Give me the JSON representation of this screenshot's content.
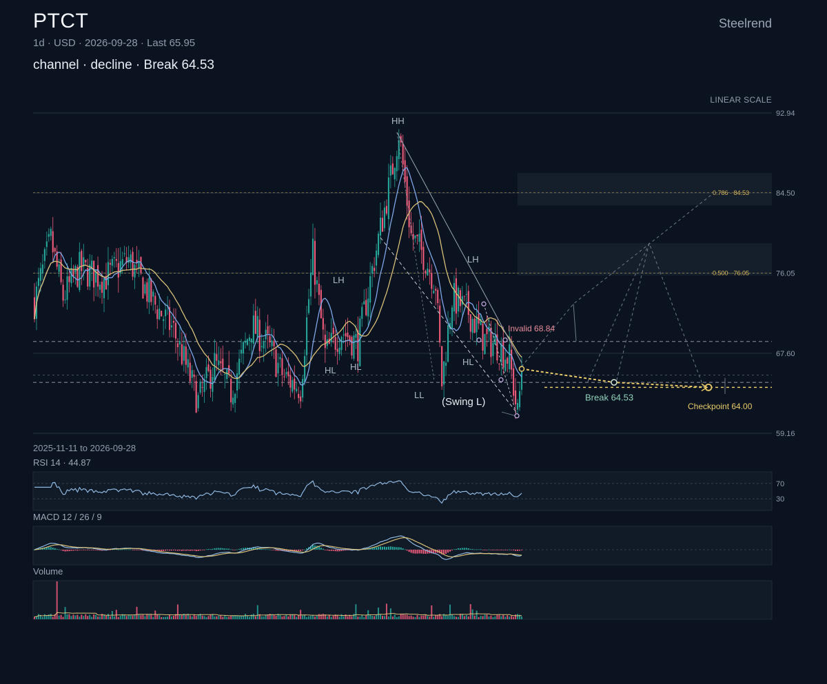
{
  "header": {
    "symbol": "PTCT",
    "subtitle": "1d · USD · 2026-09-28 · Last 65.95",
    "pattern": "channel · decline · Break 64.53",
    "brand": "Steelrend",
    "scale_label": "LINEAR SCALE",
    "date_range": "2025-11-11 to 2026-09-28"
  },
  "colors": {
    "background": "#0c1320",
    "up": "#26a69a",
    "down": "#ef5b7a",
    "ma_fast": "#7fa7e8",
    "ma_slow": "#d9c079",
    "fib": "#d9b85c",
    "projection": "#e8c96a",
    "invalid": "#e88c9a",
    "break": "#8fd0b8"
  },
  "chart_data": [
    {
      "type": "candlestick",
      "title": "PTCT",
      "y_ticks": [
        92.94,
        84.5,
        76.05,
        67.6,
        59.16
      ],
      "ylim": [
        59.16,
        92.94
      ],
      "x_start": "2025-11-11",
      "x_end": "2026-09-28",
      "last": 65.95,
      "anchor_path": [
        [
          0,
          73.0
        ],
        [
          8,
          79.5
        ],
        [
          14,
          73.5
        ],
        [
          22,
          76.5
        ],
        [
          34,
          75.5
        ],
        [
          46,
          77.5
        ],
        [
          58,
          73.0
        ],
        [
          68,
          70.0
        ],
        [
          80,
          62.5
        ],
        [
          88,
          66.5
        ],
        [
          96,
          63.5
        ],
        [
          106,
          70.5
        ],
        [
          114,
          68.5
        ],
        [
          122,
          65.0
        ],
        [
          130,
          64.0
        ],
        [
          136,
          78.0
        ],
        [
          142,
          67.5
        ],
        [
          150,
          70.0
        ],
        [
          158,
          68.5
        ],
        [
          166,
          77.5
        ],
        [
          174,
          86.0
        ],
        [
          178,
          91.0
        ],
        [
          184,
          80.0
        ],
        [
          190,
          78.0
        ],
        [
          196,
          75.0
        ],
        [
          199,
          64.5
        ],
        [
          204,
          73.5
        ],
        [
          212,
          72.0
        ],
        [
          220,
          69.0
        ],
        [
          226,
          68.5
        ],
        [
          232,
          67.0
        ],
        [
          236,
          61.0
        ],
        [
          238,
          65.95
        ]
      ],
      "levels": [
        {
          "label": "0.786 · 84.53",
          "value": 84.53,
          "kind": "fib"
        },
        {
          "label": "0.500 · 76.05",
          "value": 76.05,
          "kind": "fib"
        },
        {
          "label": "Invalid 68.84",
          "value": 68.84,
          "kind": "invalid"
        },
        {
          "label": "Break 64.53",
          "value": 64.53,
          "kind": "break"
        },
        {
          "label": "Checkpoint 64.00",
          "value": 64.0,
          "kind": "checkpoint"
        }
      ],
      "swing_labels": [
        "HH",
        "LH",
        "LH",
        "HL",
        "HL",
        "HL",
        "LL",
        "(Swing L)"
      ]
    },
    {
      "type": "line",
      "title": "RSI 14 · 44.87",
      "y_ticks": [
        70,
        30
      ],
      "ylim": [
        0,
        100
      ],
      "last": 44.87
    },
    {
      "type": "line",
      "title": "MACD 12 / 26 / 9"
    },
    {
      "type": "bar",
      "title": "Volume"
    }
  ]
}
